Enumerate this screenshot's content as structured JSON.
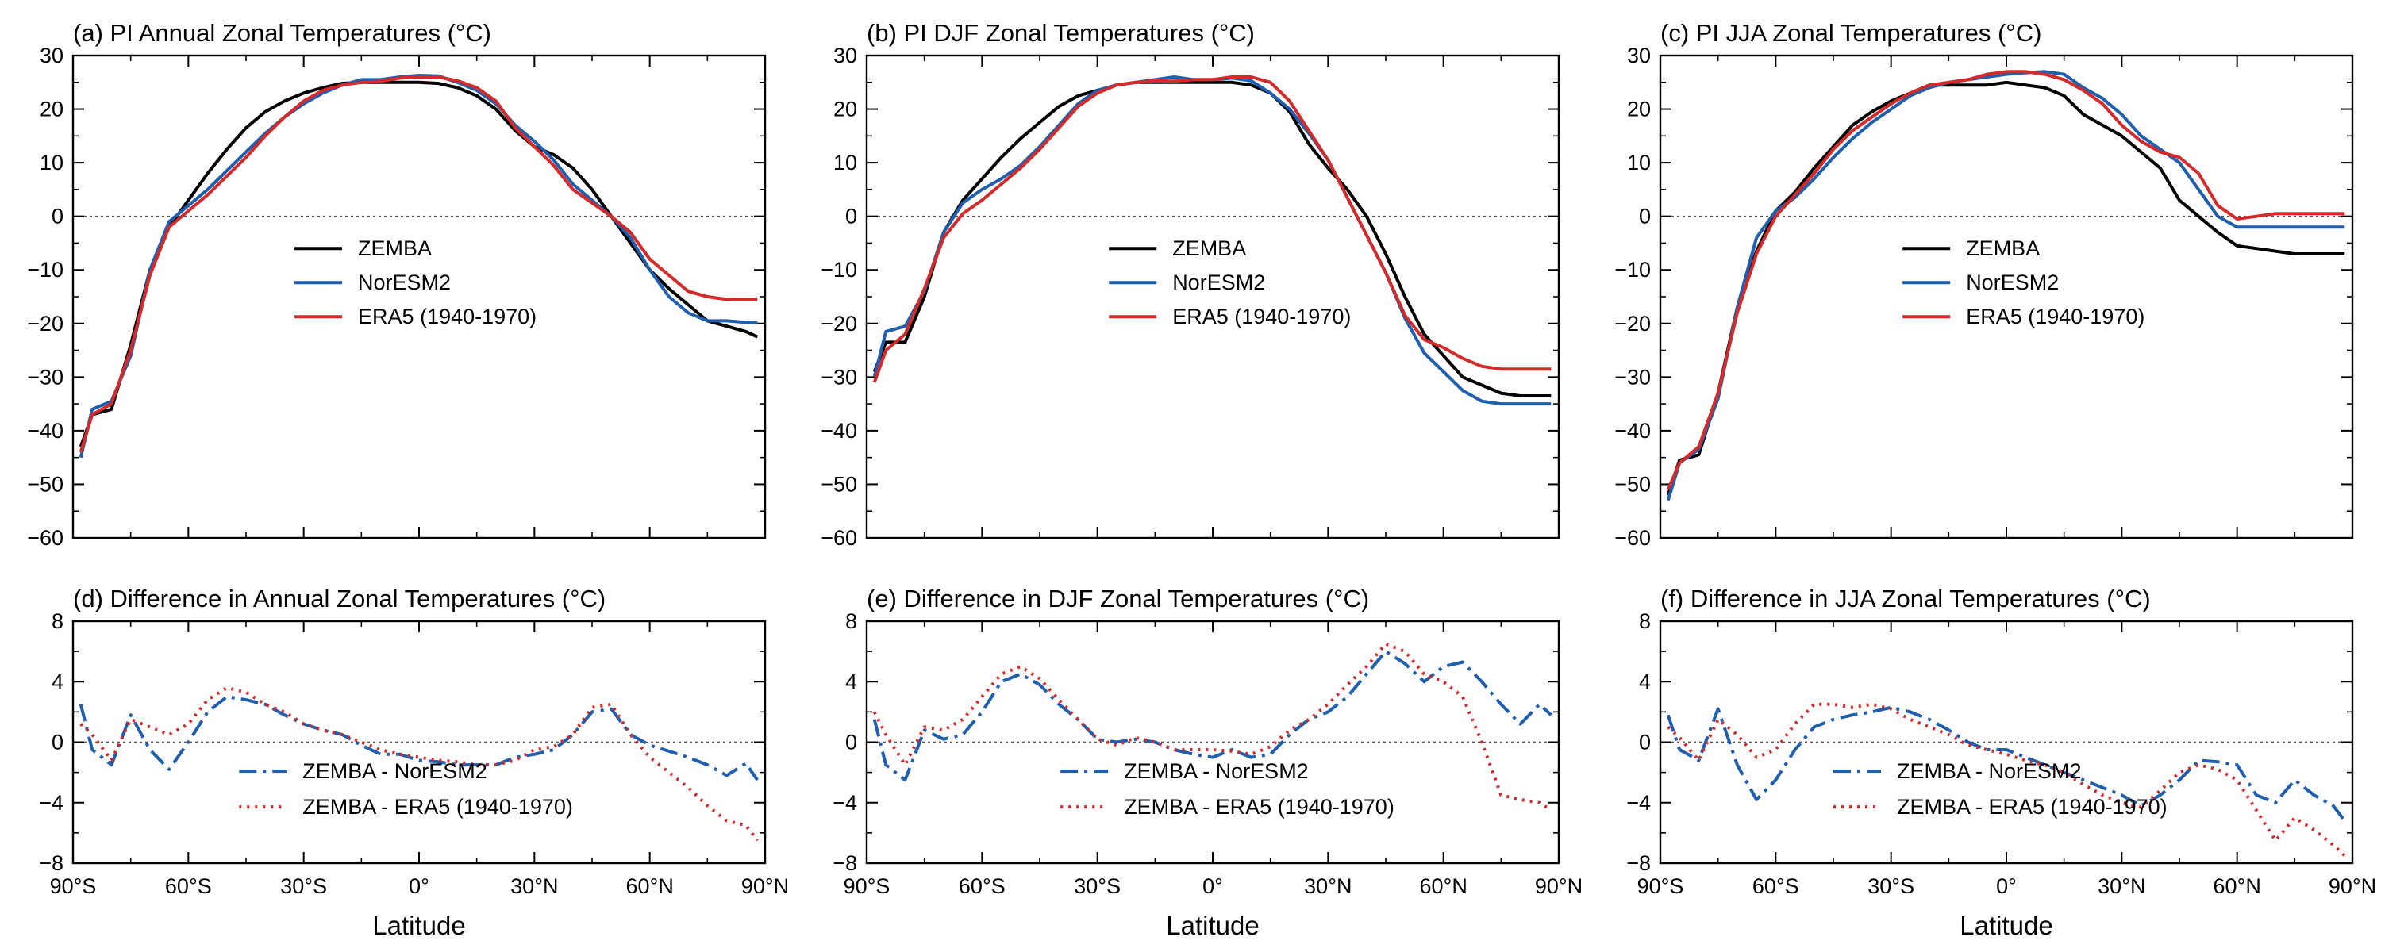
{
  "colors": {
    "zemba": "#000000",
    "noresm2": "#1f5fae",
    "era5": "#d42a2a",
    "axis": "#000000",
    "zero_line": "#555555"
  },
  "x_ticks": {
    "values": [
      -90,
      -60,
      -30,
      0,
      30,
      60,
      90
    ],
    "labels": [
      "90°S",
      "60°S",
      "30°S",
      "0°",
      "30°N",
      "60°N",
      "90°N"
    ]
  },
  "x_label": "Latitude",
  "chart_data": [
    {
      "type": "line",
      "id": "a",
      "title": "(a) PI Annual Zonal Temperatures (°C)",
      "xlim": [
        -90,
        90
      ],
      "ylim": [
        -60,
        30
      ],
      "yticks": [
        -60,
        -50,
        -40,
        -30,
        -20,
        -10,
        0,
        10,
        20,
        30
      ],
      "ytick_labels": [
        "−60",
        "−50",
        "−40",
        "−30",
        "−20",
        "−10",
        "0",
        "10",
        "20",
        "30"
      ],
      "legend_position": "center-left",
      "x": [
        -88,
        -85,
        -80,
        -75,
        -70,
        -65,
        -60,
        -55,
        -50,
        -45,
        -40,
        -35,
        -30,
        -25,
        -20,
        -15,
        -10,
        -5,
        0,
        5,
        10,
        15,
        20,
        25,
        30,
        35,
        40,
        45,
        50,
        55,
        60,
        65,
        70,
        75,
        80,
        85,
        88
      ],
      "series": [
        {
          "name": "ZEMBA",
          "style": "solid",
          "color": "#000000",
          "values": [
            -43,
            -37,
            -36,
            -24,
            -10,
            -2,
            3,
            8,
            12.5,
            16.5,
            19.5,
            21.5,
            23,
            24,
            24.8,
            25,
            25,
            25,
            25,
            24.8,
            24,
            22.5,
            20,
            16,
            13,
            11.5,
            9,
            5,
            0,
            -5,
            -10,
            -13.5,
            -16.5,
            -19.5,
            -20.5,
            -21.5,
            -22.5
          ]
        },
        {
          "name": "NorESM2",
          "style": "solid",
          "color": "#1f5fae",
          "values": [
            -45,
            -36,
            -34.5,
            -26,
            -10,
            -1,
            2,
            5,
            8.5,
            12,
            15.5,
            18.5,
            21,
            23,
            24.5,
            25.5,
            25.5,
            26,
            26.3,
            26.2,
            25,
            23.5,
            21,
            17,
            14,
            10.5,
            6,
            3,
            0,
            -4,
            -10,
            -15,
            -18,
            -19.5,
            -19.5,
            -19.8,
            -19.8
          ]
        },
        {
          "name": "ERA5 (1940-1970)",
          "style": "solid",
          "color": "#d42a2a",
          "values": [
            -44,
            -37,
            -35,
            -25,
            -11,
            -2,
            1,
            4,
            7.5,
            11,
            15,
            18.5,
            21.5,
            23.5,
            24.5,
            25,
            25.2,
            25.8,
            26,
            26,
            25.3,
            24,
            21.5,
            16.5,
            13,
            9.5,
            5,
            2.5,
            0,
            -3,
            -8,
            -11,
            -14,
            -15,
            -15.5,
            -15.5,
            -15.5
          ]
        }
      ]
    },
    {
      "type": "line",
      "id": "b",
      "title": "(b) PI DJF Zonal Temperatures (°C)",
      "xlim": [
        -90,
        90
      ],
      "ylim": [
        -60,
        30
      ],
      "yticks": [
        -60,
        -50,
        -40,
        -30,
        -20,
        -10,
        0,
        10,
        20,
        30
      ],
      "ytick_labels": [
        "−60",
        "−50",
        "−40",
        "−30",
        "−20",
        "−10",
        "0",
        "10",
        "20",
        "30"
      ],
      "legend_position": "center",
      "x": [
        -88,
        -85,
        -80,
        -75,
        -70,
        -65,
        -60,
        -55,
        -50,
        -45,
        -40,
        -35,
        -30,
        -25,
        -20,
        -15,
        -10,
        -5,
        0,
        5,
        10,
        15,
        20,
        25,
        30,
        35,
        40,
        45,
        50,
        55,
        60,
        65,
        70,
        75,
        80,
        85,
        88
      ],
      "series": [
        {
          "name": "ZEMBA",
          "style": "solid",
          "color": "#000000",
          "values": [
            -29,
            -23.5,
            -23.5,
            -15,
            -3,
            3,
            7,
            11,
            14.5,
            17.5,
            20.5,
            22.5,
            23.5,
            24.5,
            25,
            25,
            25,
            25,
            25,
            25,
            24.5,
            23,
            19.5,
            13.5,
            9,
            5,
            0,
            -7,
            -15,
            -22,
            -26,
            -30,
            -31.5,
            -33,
            -33.5,
            -33.5,
            -33.5
          ]
        },
        {
          "name": "NorESM2",
          "style": "solid",
          "color": "#1f5fae",
          "values": [
            -30,
            -21.5,
            -20.5,
            -14,
            -3,
            2.5,
            5,
            7,
            9.5,
            13,
            17,
            21,
            23.5,
            24.5,
            25,
            25.5,
            26,
            25.5,
            25.5,
            25.8,
            25.3,
            23,
            20,
            15.5,
            10.5,
            3.5,
            -3.5,
            -10.5,
            -19,
            -25.5,
            -29,
            -32.5,
            -34.5,
            -35,
            -35,
            -35,
            -35
          ]
        },
        {
          "name": "ERA5 (1940-1970)",
          "style": "solid",
          "color": "#d42a2a",
          "values": [
            -31,
            -25,
            -22,
            -13.5,
            -4,
            0.5,
            3,
            6,
            9,
            12.5,
            16.5,
            20.5,
            23,
            24.5,
            25,
            25.3,
            25.2,
            25.5,
            25.5,
            26,
            26,
            25,
            21.5,
            16,
            10.5,
            3.5,
            -3.5,
            -10.5,
            -18.5,
            -23,
            -24.5,
            -26.5,
            -28,
            -28.5,
            -28.5,
            -28.5,
            -28.5
          ]
        }
      ]
    },
    {
      "type": "line",
      "id": "c",
      "title": "(c) PI JJA Zonal Temperatures (°C)",
      "xlim": [
        -90,
        90
      ],
      "ylim": [
        -60,
        30
      ],
      "yticks": [
        -60,
        -50,
        -40,
        -30,
        -20,
        -10,
        0,
        10,
        20,
        30
      ],
      "ytick_labels": [
        "−60",
        "−50",
        "−40",
        "−30",
        "−20",
        "−10",
        "0",
        "10",
        "20",
        "30"
      ],
      "legend_position": "center",
      "x": [
        -88,
        -85,
        -80,
        -75,
        -70,
        -65,
        -60,
        -55,
        -50,
        -45,
        -40,
        -35,
        -30,
        -25,
        -20,
        -15,
        -10,
        -5,
        0,
        5,
        10,
        15,
        20,
        25,
        30,
        35,
        40,
        45,
        50,
        55,
        60,
        65,
        70,
        75,
        80,
        85,
        88
      ],
      "series": [
        {
          "name": "ZEMBA",
          "style": "solid",
          "color": "#000000",
          "values": [
            -52,
            -45.5,
            -44.5,
            -33,
            -17,
            -6.5,
            1,
            4.5,
            9,
            13,
            17,
            19.5,
            21.5,
            23,
            24.5,
            24.5,
            24.5,
            24.5,
            25,
            24.5,
            24,
            22.5,
            19,
            17,
            15,
            12,
            9,
            3,
            0,
            -3,
            -5.5,
            -6,
            -6.5,
            -7,
            -7,
            -7,
            -7
          ]
        },
        {
          "name": "NorESM2",
          "style": "solid",
          "color": "#1f5fae",
          "values": [
            -53,
            -46,
            -43.5,
            -34,
            -17,
            -4,
            1,
            3.5,
            7,
            11,
            14.5,
            17.5,
            20,
            22.5,
            24,
            25,
            25.5,
            26,
            26.5,
            26.8,
            27,
            26.5,
            24,
            22,
            19,
            15,
            12.5,
            10,
            5,
            0,
            -2,
            -2,
            -2,
            -2,
            -2,
            -2,
            -2
          ]
        },
        {
          "name": "ERA5 (1940-1970)",
          "style": "solid",
          "color": "#d42a2a",
          "values": [
            -51,
            -46,
            -43,
            -33,
            -18,
            -7,
            0,
            4,
            8,
            12.5,
            16,
            18.5,
            21,
            23,
            24.5,
            25,
            25.5,
            26.5,
            27,
            27,
            26.5,
            25.5,
            23.5,
            21,
            17,
            14,
            12,
            11,
            8,
            2,
            -0.5,
            0,
            0.5,
            0.5,
            0.5,
            0.5,
            0.5
          ]
        }
      ]
    },
    {
      "type": "line",
      "id": "d",
      "title": "(d) Difference in Annual Zonal Temperatures (°C)",
      "xlim": [
        -90,
        90
      ],
      "ylim": [
        -8,
        8
      ],
      "yticks": [
        -8,
        -4,
        0,
        4,
        8
      ],
      "ytick_labels": [
        "−8",
        "−4",
        "0",
        "4",
        "8"
      ],
      "legend_position": "bottom-left",
      "x": [
        -88,
        -85,
        -80,
        -75,
        -70,
        -65,
        -60,
        -55,
        -50,
        -45,
        -40,
        -35,
        -30,
        -25,
        -20,
        -15,
        -10,
        -5,
        0,
        5,
        10,
        15,
        20,
        25,
        30,
        35,
        40,
        45,
        50,
        55,
        60,
        65,
        70,
        75,
        80,
        85,
        88
      ],
      "series": [
        {
          "name": "ZEMBA - NorESM2",
          "style": "dashdot",
          "color": "#1f5fae",
          "values": [
            2.5,
            -0.5,
            -1.5,
            1.8,
            -0.5,
            -1.8,
            0,
            2,
            3,
            2.8,
            2.5,
            1.8,
            1.2,
            0.8,
            0.5,
            -0.2,
            -0.8,
            -0.8,
            -1.2,
            -1.3,
            -1.5,
            -1.5,
            -1.5,
            -1.0,
            -0.8,
            -0.5,
            0.5,
            2.0,
            2.2,
            0.5,
            -0.2,
            -0.6,
            -1.0,
            -1.5,
            -2.2,
            -1.4,
            -2.5
          ]
        },
        {
          "name": "ZEMBA - ERA5 (1940-1970)",
          "style": "dotted",
          "color": "#d42a2a",
          "values": [
            1.2,
            0.5,
            -1.2,
            1.5,
            1.0,
            0.5,
            1.2,
            2.8,
            3.6,
            3.3,
            2.5,
            2.0,
            1.2,
            0.8,
            0.5,
            0.0,
            -0.5,
            -0.8,
            -1.0,
            -1.2,
            -1.3,
            -1.5,
            -1.5,
            -1.2,
            -0.5,
            -0.3,
            0.5,
            2.3,
            2.5,
            0.5,
            -1.0,
            -2.0,
            -3.0,
            -4.2,
            -5.2,
            -5.5,
            -6.5
          ]
        }
      ]
    },
    {
      "type": "line",
      "id": "e",
      "title": "(e) Difference in DJF Zonal Temperatures (°C)",
      "xlim": [
        -90,
        90
      ],
      "ylim": [
        -8,
        8
      ],
      "yticks": [
        -8,
        -4,
        0,
        4,
        8
      ],
      "ytick_labels": [
        "−8",
        "−4",
        "0",
        "4",
        "8"
      ],
      "legend_position": "bottom-center",
      "x": [
        -88,
        -85,
        -80,
        -75,
        -70,
        -65,
        -60,
        -55,
        -50,
        -45,
        -40,
        -35,
        -30,
        -25,
        -20,
        -15,
        -10,
        -5,
        0,
        5,
        10,
        15,
        20,
        25,
        30,
        35,
        40,
        45,
        50,
        55,
        60,
        65,
        70,
        75,
        80,
        85,
        88
      ],
      "series": [
        {
          "name": "ZEMBA - NorESM2",
          "style": "dashdot",
          "color": "#1f5fae",
          "values": [
            1.5,
            -1.5,
            -2.5,
            0.8,
            0.2,
            0.5,
            2,
            4,
            4.5,
            3.8,
            2.5,
            1.5,
            0.2,
            0,
            0.2,
            0,
            -0.5,
            -0.8,
            -1.0,
            -0.5,
            -1.0,
            -0.8,
            0.5,
            1.5,
            2.0,
            3.0,
            4.5,
            6.0,
            5.2,
            4.0,
            5.0,
            5.3,
            4.0,
            2.5,
            1.2,
            2.5,
            1.8
          ]
        },
        {
          "name": "ZEMBA - ERA5 (1940-1970)",
          "style": "dotted",
          "color": "#d42a2a",
          "values": [
            2,
            0.5,
            -1.5,
            1.0,
            0.8,
            1.5,
            3,
            4.5,
            5.0,
            4.2,
            2.8,
            1.5,
            0.2,
            -0.2,
            0.3,
            0,
            -0.5,
            -0.5,
            -0.5,
            -0.6,
            -0.8,
            -0.3,
            0.8,
            1.5,
            2.5,
            3.8,
            5.0,
            6.5,
            6.0,
            4.5,
            4.0,
            3.0,
            0.0,
            -3.5,
            -3.8,
            -4.0,
            -4.5
          ]
        }
      ]
    },
    {
      "type": "line",
      "id": "f",
      "title": "(f) Difference in JJA Zonal Temperatures (°C)",
      "xlim": [
        -90,
        90
      ],
      "ylim": [
        -8,
        8
      ],
      "yticks": [
        -8,
        -4,
        0,
        4,
        8
      ],
      "ytick_labels": [
        "−8",
        "−4",
        "0",
        "4",
        "8"
      ],
      "legend_position": "bottom-center",
      "x": [
        -88,
        -85,
        -80,
        -75,
        -70,
        -65,
        -60,
        -55,
        -50,
        -45,
        -40,
        -35,
        -30,
        -25,
        -20,
        -15,
        -10,
        -5,
        0,
        5,
        10,
        15,
        20,
        25,
        30,
        35,
        40,
        45,
        50,
        55,
        60,
        65,
        70,
        75,
        80,
        85,
        88
      ],
      "series": [
        {
          "name": "ZEMBA - NorESM2",
          "style": "dashdot",
          "color": "#1f5fae",
          "values": [
            1.8,
            -0.5,
            -1.2,
            2.2,
            -1.5,
            -3.8,
            -2.5,
            -0.5,
            1.0,
            1.5,
            1.8,
            2.0,
            2.3,
            2.0,
            1.5,
            0.8,
            0.0,
            -0.5,
            -0.5,
            -1.0,
            -1.5,
            -2.0,
            -2.5,
            -3.0,
            -3.5,
            -4.2,
            -3.5,
            -2.5,
            -1.2,
            -1.3,
            -1.5,
            -3.5,
            -4.0,
            -2.5,
            -3.5,
            -4.2,
            -5.2
          ]
        },
        {
          "name": "ZEMBA - ERA5 (1940-1970)",
          "style": "dotted",
          "color": "#d42a2a",
          "values": [
            1.0,
            0.3,
            -1.2,
            1.5,
            0.5,
            -1.0,
            -0.5,
            1.2,
            2.5,
            2.5,
            2.3,
            2.5,
            2.2,
            1.5,
            1.0,
            0.5,
            -0.2,
            -0.5,
            -0.8,
            -1.2,
            -1.5,
            -2.0,
            -2.8,
            -3.5,
            -4.0,
            -4.3,
            -3.2,
            -2.0,
            -1.5,
            -1.8,
            -2.5,
            -4.5,
            -6.5,
            -5.0,
            -5.8,
            -6.8,
            -7.5
          ]
        }
      ]
    }
  ]
}
